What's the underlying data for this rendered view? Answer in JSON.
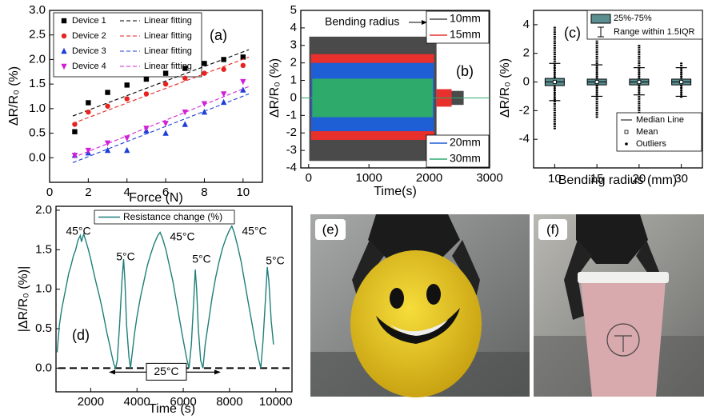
{
  "chart_data": [
    {
      "type": "scatter",
      "xlabel": "Force (N)",
      "ylabel": "ΔR/R₀ (%)",
      "annotation": "(a)",
      "x": [
        1.3,
        2,
        3,
        4,
        5,
        6,
        7,
        8,
        9,
        10
      ],
      "xlim": [
        0,
        11
      ],
      "xticks": [
        0,
        2,
        4,
        6,
        8,
        10
      ],
      "ylim": [
        -0.5,
        3.0
      ],
      "yticks": [
        {
          "value": 0,
          "label": "0.0"
        },
        0.5,
        {
          "value": 1,
          "label": "1.0"
        },
        1.5,
        {
          "value": 2,
          "label": "2.0"
        },
        2.5,
        {
          "value": 3,
          "label": "3.0"
        }
      ],
      "series": [
        {
          "name": "Device 1",
          "color": "#000000",
          "marker": "square",
          "values": [
            0.53,
            1.12,
            1.33,
            1.48,
            1.6,
            1.72,
            1.82,
            1.92,
            2.0,
            2.05
          ],
          "fit_name": "Linear fitting",
          "fit_x": [
            1.2,
            10.3
          ],
          "fit_values": [
            0.85,
            2.2
          ]
        },
        {
          "name": "Device 2",
          "color": "#e8231f",
          "marker": "circle",
          "values": [
            0.68,
            0.93,
            1.05,
            1.2,
            1.3,
            1.5,
            1.62,
            1.72,
            1.8,
            1.88
          ],
          "fit_name": "Linear fitting",
          "fit_x": [
            1.2,
            10.3
          ],
          "fit_values": [
            0.7,
            2.05
          ]
        },
        {
          "name": "Device 3",
          "color": "#1c3fd6",
          "marker": "triangle",
          "values": [
            0.05,
            0.1,
            0.15,
            0.15,
            0.55,
            0.5,
            0.68,
            0.93,
            1.13,
            1.38
          ],
          "fit_name": "Linear fitting",
          "fit_x": [
            1.2,
            10.3
          ],
          "fit_values": [
            -0.1,
            1.3
          ]
        },
        {
          "name": "Device 4",
          "color": "#d21fd8",
          "marker": "triangle-down",
          "values": [
            0.05,
            0.15,
            0.3,
            0.4,
            0.6,
            0.7,
            0.93,
            1.1,
            1.3,
            1.55
          ],
          "fit_name": "Linear fitting",
          "fit_x": [
            1.2,
            10.3
          ],
          "fit_values": [
            0.0,
            1.45
          ]
        }
      ]
    },
    {
      "type": "range",
      "xlabel": "Time(s)",
      "ylabel": "ΔR/R₀ (%)",
      "annotation": "(b)",
      "note": "Bending radius",
      "xlim": [
        -130,
        3000
      ],
      "xticks": [
        0,
        1000,
        2000,
        3000
      ],
      "ylim": [
        -4,
        5
      ],
      "yticks": [
        -4,
        -3,
        -2,
        -1,
        0,
        1,
        2,
        3,
        4,
        5
      ],
      "series": [
        {
          "name": "10mm",
          "color": "#4a4a4a",
          "segments": [
            {
              "x": [
                10,
                2120
              ],
              "y": [
                -3.6,
                3.5
              ]
            },
            {
              "x": [
                2370,
                2570
              ],
              "y": [
                -0.4,
                0.4
              ]
            }
          ]
        },
        {
          "name": "15mm",
          "color": "#e8302c",
          "segments": [
            {
              "x": [
                40,
                2080
              ],
              "y": [
                -2.4,
                2.5
              ]
            },
            {
              "x": [
                2120,
                2370
              ],
              "y": [
                -0.5,
                0.5
              ]
            }
          ]
        },
        {
          "name": "20mm",
          "color": "#1f5fd6",
          "segments": [
            {
              "x": [
                40,
                2080
              ],
              "y": [
                -1.9,
                2.0
              ]
            }
          ]
        },
        {
          "name": "30mm",
          "color": "#2eaa6a",
          "segments": [
            {
              "x": [
                60,
                2060
              ],
              "y": [
                -1.1,
                1.1
              ]
            }
          ]
        }
      ]
    },
    {
      "type": "box",
      "xlabel": "Bending radius (mm)",
      "ylabel": "ΔR/R₀ (%)",
      "annotation": "(c)",
      "categories": [
        "10",
        "15",
        "20",
        "30"
      ],
      "color": "#5b8e90",
      "ylim": [
        -6,
        5
      ],
      "yticks": [
        -4,
        -2,
        0,
        2,
        4
      ],
      "q1": [
        -0.25,
        -0.2,
        -0.2,
        -0.2
      ],
      "q3": [
        0.25,
        0.2,
        0.2,
        0.2
      ],
      "median": [
        0,
        0,
        0,
        0
      ],
      "mean": [
        0,
        0,
        0,
        0
      ],
      "whisker_low": [
        -1.3,
        -1.0,
        -0.9,
        -1.0
      ],
      "whisker_high": [
        1.3,
        1.2,
        1.0,
        1.0
      ],
      "outlier_low": [
        -3.3,
        -2.5,
        -2.5,
        -1.1
      ],
      "outlier_high": [
        3.9,
        2.9,
        2.6,
        1.4
      ],
      "legend": [
        "25%-75%",
        "Range within 1.5IQR",
        "Median Line",
        "Mean",
        "Outliers"
      ]
    },
    {
      "type": "line",
      "xlabel": "Time (s)",
      "ylabel": "|ΔR/R₀ (%)|",
      "annotation": "(d)",
      "xlim": [
        500,
        10700
      ],
      "xticks": [
        2000,
        4000,
        6000,
        8000,
        10000
      ],
      "ylim": [
        -0.3,
        2.05
      ],
      "yticks": [
        {
          "value": 0,
          "label": "0.0"
        },
        0.5,
        {
          "value": 1,
          "label": "1.0"
        },
        1.5,
        {
          "value": 2,
          "label": "2.0"
        }
      ],
      "hline": 0,
      "hline_label": "25°C",
      "peak_labels": [
        "45°C",
        "45°C",
        "45°C"
      ],
      "spike_labels": [
        "5°C",
        "5°C",
        "5°C"
      ],
      "x": [
        550,
        650,
        750,
        850,
        950,
        1050,
        1150,
        1250,
        1350,
        1450,
        1550,
        1600,
        1700,
        1800,
        1900,
        2000,
        2100,
        2200,
        2300,
        2400,
        2500,
        2600,
        2700,
        2800,
        2900,
        3000,
        3080,
        3150,
        3250,
        3350,
        3420,
        3480,
        3550,
        3650,
        3720,
        3800,
        3900,
        4000,
        4150,
        4300,
        4450,
        4600,
        4750,
        4900,
        5000,
        5100,
        5250,
        5400,
        5550,
        5700,
        5850,
        6000,
        6150,
        6250,
        6350,
        6450,
        6520,
        6580,
        6650,
        6750,
        6850,
        6950,
        7100,
        7250,
        7400,
        7550,
        7700,
        7850,
        8000,
        8100,
        8200,
        8350,
        8500,
        8650,
        8800,
        8950,
        9100,
        9250,
        9350,
        9450,
        9550,
        9630,
        9700,
        9800,
        9900
      ],
      "series": [
        {
          "name": "Resistance change (%)",
          "color": "#1f7f7a",
          "values": [
            0.2,
            0.55,
            0.75,
            0.9,
            1.05,
            1.2,
            1.3,
            1.42,
            1.5,
            1.62,
            1.68,
            1.6,
            1.7,
            1.6,
            1.5,
            1.38,
            1.25,
            1.12,
            1.0,
            0.88,
            0.75,
            0.6,
            0.45,
            0.32,
            0.18,
            0.05,
            0.0,
            0.1,
            0.55,
            1.1,
            1.38,
            1.1,
            0.55,
            0.15,
            0.0,
            0.2,
            0.45,
            0.65,
            0.9,
            1.1,
            1.3,
            1.45,
            1.58,
            1.68,
            1.72,
            1.65,
            1.5,
            1.3,
            1.1,
            0.85,
            0.6,
            0.35,
            0.12,
            0.0,
            0.3,
            0.85,
            1.25,
            1.0,
            0.5,
            0.1,
            0.0,
            0.3,
            0.6,
            0.9,
            1.15,
            1.35,
            1.52,
            1.65,
            1.75,
            1.8,
            1.72,
            1.55,
            1.35,
            1.1,
            0.85,
            0.6,
            0.35,
            0.12,
            0.0,
            0.35,
            0.85,
            1.28,
            1.1,
            0.6,
            0.3
          ]
        }
      ]
    }
  ],
  "photos": [
    {
      "label": "(e)"
    },
    {
      "label": "(f)"
    }
  ]
}
